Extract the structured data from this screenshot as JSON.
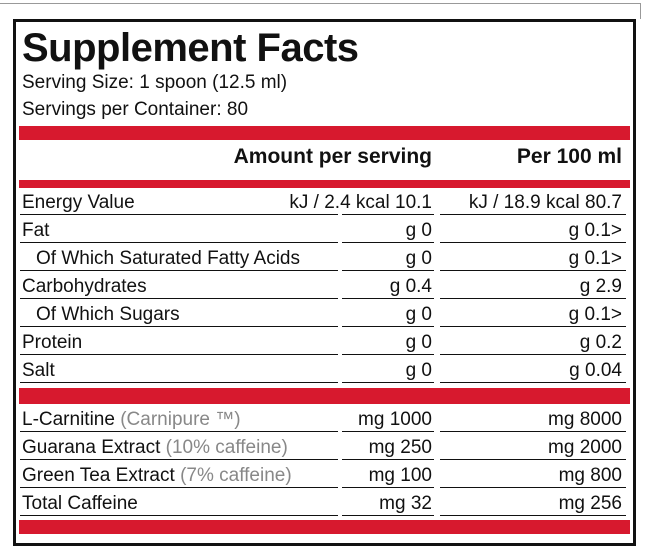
{
  "title": "Supplement Facts",
  "serving_size": "Serving Size: 1 spoon (12.5 ml)",
  "servings_per_container": "Servings per Container: 80",
  "table": {
    "header": [
      "Amount per serving",
      "Per 100 ml"
    ],
    "nutrients": [
      {
        "name": "Energy Value",
        "per_serving": "10.1 kJ / 2.4 kcal",
        "per_100ml": "80.7 kJ / 18.9 kcal"
      },
      {
        "name": "Fat",
        "per_serving": "0 g",
        "per_100ml": "<0.1 g"
      },
      {
        "name": "Of Which Saturated Fatty Acids",
        "per_serving": "0 g",
        "per_100ml": "<0.1 g"
      },
      {
        "name": "Carbohydrates",
        "per_serving": "0.4 g",
        "per_100ml": "2.9 g"
      },
      {
        "name": "Of Which Sugars",
        "per_serving": "0 g",
        "per_100ml": "<0.1 g"
      },
      {
        "name": "Protein",
        "per_serving": "0 g",
        "per_100ml": "0.2 g"
      },
      {
        "name": "Salt",
        "per_serving": "0 g",
        "per_100ml": "0.04 g"
      }
    ],
    "actives": [
      {
        "name": "L-Carnitine",
        "note": "(Carnipure ™)",
        "per_serving": "1000 mg",
        "per_100ml": "8000 mg"
      },
      {
        "name": "Guarana Extract",
        "note": "(10% caffeine)",
        "per_serving": "250 mg",
        "per_100ml": "2000 mg"
      },
      {
        "name": "Green Tea Extract",
        "note": "(7% caffeine)",
        "per_serving": "100 mg",
        "per_100ml": "800 mg"
      },
      {
        "name": "Total Caffeine",
        "per_serving": "32 mg",
        "per_100ml": "256 mg"
      }
    ]
  }
}
